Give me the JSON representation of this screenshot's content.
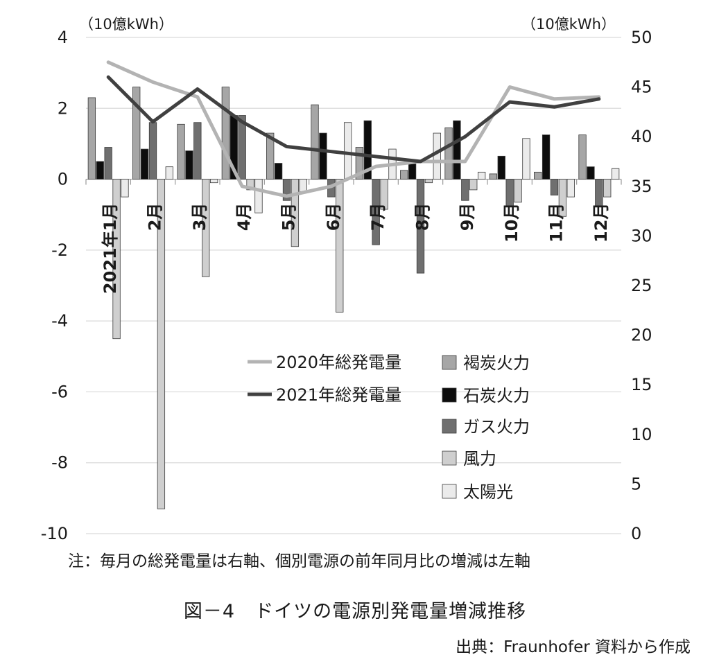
{
  "chart_data": {
    "type": "bar",
    "categories": [
      "2021年1月",
      "2月",
      "3月",
      "4月",
      "5月",
      "6月",
      "7月",
      "8月",
      "9月",
      "10月",
      "11月",
      "12月"
    ],
    "left_axis": {
      "unit": "（10億kWh）",
      "ylim": [
        -10,
        4
      ],
      "ticks": [
        4,
        2,
        0,
        -2,
        -4,
        -6,
        -8,
        -10
      ]
    },
    "right_axis": {
      "unit": "（10億kWh）",
      "ylim": [
        0,
        50
      ],
      "ticks": [
        50,
        45,
        40,
        35,
        30,
        25,
        20,
        15,
        10,
        5,
        0
      ]
    },
    "bar_series": [
      {
        "name": "褐炭火力",
        "color": "#a6a6a6",
        "values": [
          2.3,
          2.6,
          1.55,
          2.6,
          1.3,
          2.1,
          0.9,
          0.25,
          1.45,
          0.15,
          0.2,
          1.25
        ]
      },
      {
        "name": "石炭火力",
        "color": "#0d0d0d",
        "values": [
          0.5,
          0.85,
          0.8,
          1.8,
          0.45,
          1.3,
          1.65,
          0.45,
          1.65,
          0.65,
          1.25,
          0.35
        ]
      },
      {
        "name": "ガス火力",
        "color": "#6f6f6f",
        "values": [
          0.9,
          1.6,
          1.6,
          1.8,
          -0.6,
          -0.5,
          -1.85,
          -2.65,
          -0.6,
          -0.75,
          -0.45,
          -0.75
        ]
      },
      {
        "name": "風力",
        "color": "#cfcfcf",
        "values": [
          -4.5,
          -9.3,
          -2.75,
          -0.3,
          -1.9,
          -3.75,
          -0.85,
          -0.1,
          -0.3,
          -0.65,
          -1.05,
          -0.5
        ]
      },
      {
        "name": "太陽光",
        "color": "#ebebeb",
        "values": [
          -0.5,
          0.35,
          -0.1,
          -0.95,
          -0.35,
          1.6,
          0.85,
          1.3,
          0.2,
          1.15,
          -0.5,
          0.3
        ]
      }
    ],
    "line_series": [
      {
        "name": "2020年総発電量",
        "color": "#b3b3b3",
        "values": [
          47.5,
          45.5,
          44.0,
          35.0,
          34.0,
          35.0,
          37.0,
          37.5,
          37.5,
          45.0,
          43.8,
          44.0
        ]
      },
      {
        "name": "2021年総発電量",
        "color": "#404040",
        "values": [
          46.0,
          41.5,
          44.8,
          41.5,
          39.0,
          38.5,
          38.0,
          37.5,
          40.0,
          43.5,
          43.0,
          43.8
        ]
      }
    ],
    "legend": "center-right"
  },
  "note": "注：毎月の総発電量は右軸、個別電源の前年同月比の増減は左軸",
  "caption": "図－4　ドイツの電源別発電量増減推移",
  "source": "出典：Fraunhofer 資料から作成"
}
